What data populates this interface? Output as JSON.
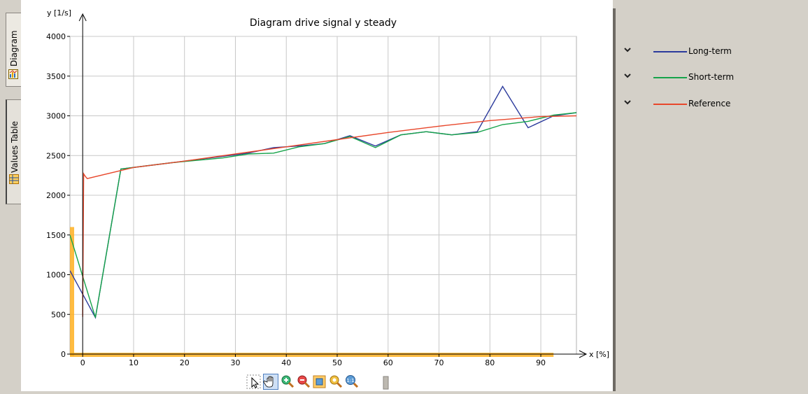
{
  "tabs": [
    {
      "label": "Diagram",
      "icon": "diagram-icon",
      "active": true
    },
    {
      "label": "Values Table",
      "icon": "table-icon",
      "active": false
    }
  ],
  "toolbar": [
    {
      "name": "select-tool",
      "icon": "pointer-icon"
    },
    {
      "name": "pan-tool",
      "icon": "hand-icon"
    },
    {
      "name": "zoom-in",
      "icon": "zoom-in-icon"
    },
    {
      "name": "zoom-out",
      "icon": "zoom-out-icon"
    },
    {
      "name": "fit-view",
      "icon": "fit-icon"
    },
    {
      "name": "zoom-area",
      "icon": "zoom-area-icon"
    },
    {
      "name": "zoom-1to1",
      "icon": "zoom-1-1-icon",
      "text": "1:1"
    }
  ],
  "legend": [
    {
      "label": "Long-term",
      "color": "#2b3a9c"
    },
    {
      "label": "Short-term",
      "color": "#16a34a"
    },
    {
      "label": "Reference",
      "color": "#e8472b"
    }
  ],
  "chart_data": {
    "type": "line",
    "title": "Diagram drive signal y steady",
    "xlabel": "x [%]",
    "ylabel": "y [1/s]",
    "xlim": [
      -2.5,
      97
    ],
    "ylim": [
      0,
      4000
    ],
    "x_ticks": [
      0,
      10,
      20,
      30,
      40,
      50,
      60,
      70,
      80,
      90
    ],
    "y_ticks": [
      0,
      500,
      1000,
      1500,
      2000,
      2500,
      3000,
      3500,
      4000
    ],
    "grid": true,
    "legend_position": "right-panel",
    "highlight_color": "#ffb020",
    "series": [
      {
        "name": "Long-term",
        "color": "#2b3a9c",
        "x": [
          -2.5,
          2.5,
          7.5,
          12.5,
          17.5,
          22.5,
          27.5,
          32.5,
          37.5,
          42.5,
          47.5,
          52.5,
          57.5,
          62.5,
          67.5,
          72.5,
          77.5,
          82.5,
          87.5,
          92.5,
          97
        ],
        "y": [
          1050,
          460,
          2330,
          2370,
          2410,
          2450,
          2490,
          2530,
          2600,
          2620,
          2650,
          2750,
          2620,
          2760,
          2800,
          2760,
          2800,
          3370,
          2850,
          3000,
          3040
        ]
      },
      {
        "name": "Short-term",
        "color": "#16a34a",
        "x": [
          -2.5,
          2.5,
          7.5,
          12.5,
          17.5,
          22.5,
          27.5,
          32.5,
          37.5,
          42.5,
          47.5,
          52.5,
          57.5,
          62.5,
          67.5,
          72.5,
          77.5,
          82.5,
          87.5,
          92.5,
          97
        ],
        "y": [
          1500,
          460,
          2330,
          2370,
          2410,
          2440,
          2470,
          2520,
          2530,
          2610,
          2650,
          2740,
          2600,
          2760,
          2800,
          2760,
          2790,
          2890,
          2930,
          3010,
          3040
        ]
      },
      {
        "name": "Reference",
        "color": "#e8472b",
        "x": [
          0,
          0.2,
          0.5,
          0.9,
          10,
          20,
          30,
          40,
          50,
          60,
          70,
          80,
          90,
          97
        ],
        "y": [
          470,
          2270,
          2240,
          2210,
          2350,
          2430,
          2520,
          2610,
          2700,
          2790,
          2870,
          2940,
          2990,
          3000
        ]
      }
    ]
  }
}
